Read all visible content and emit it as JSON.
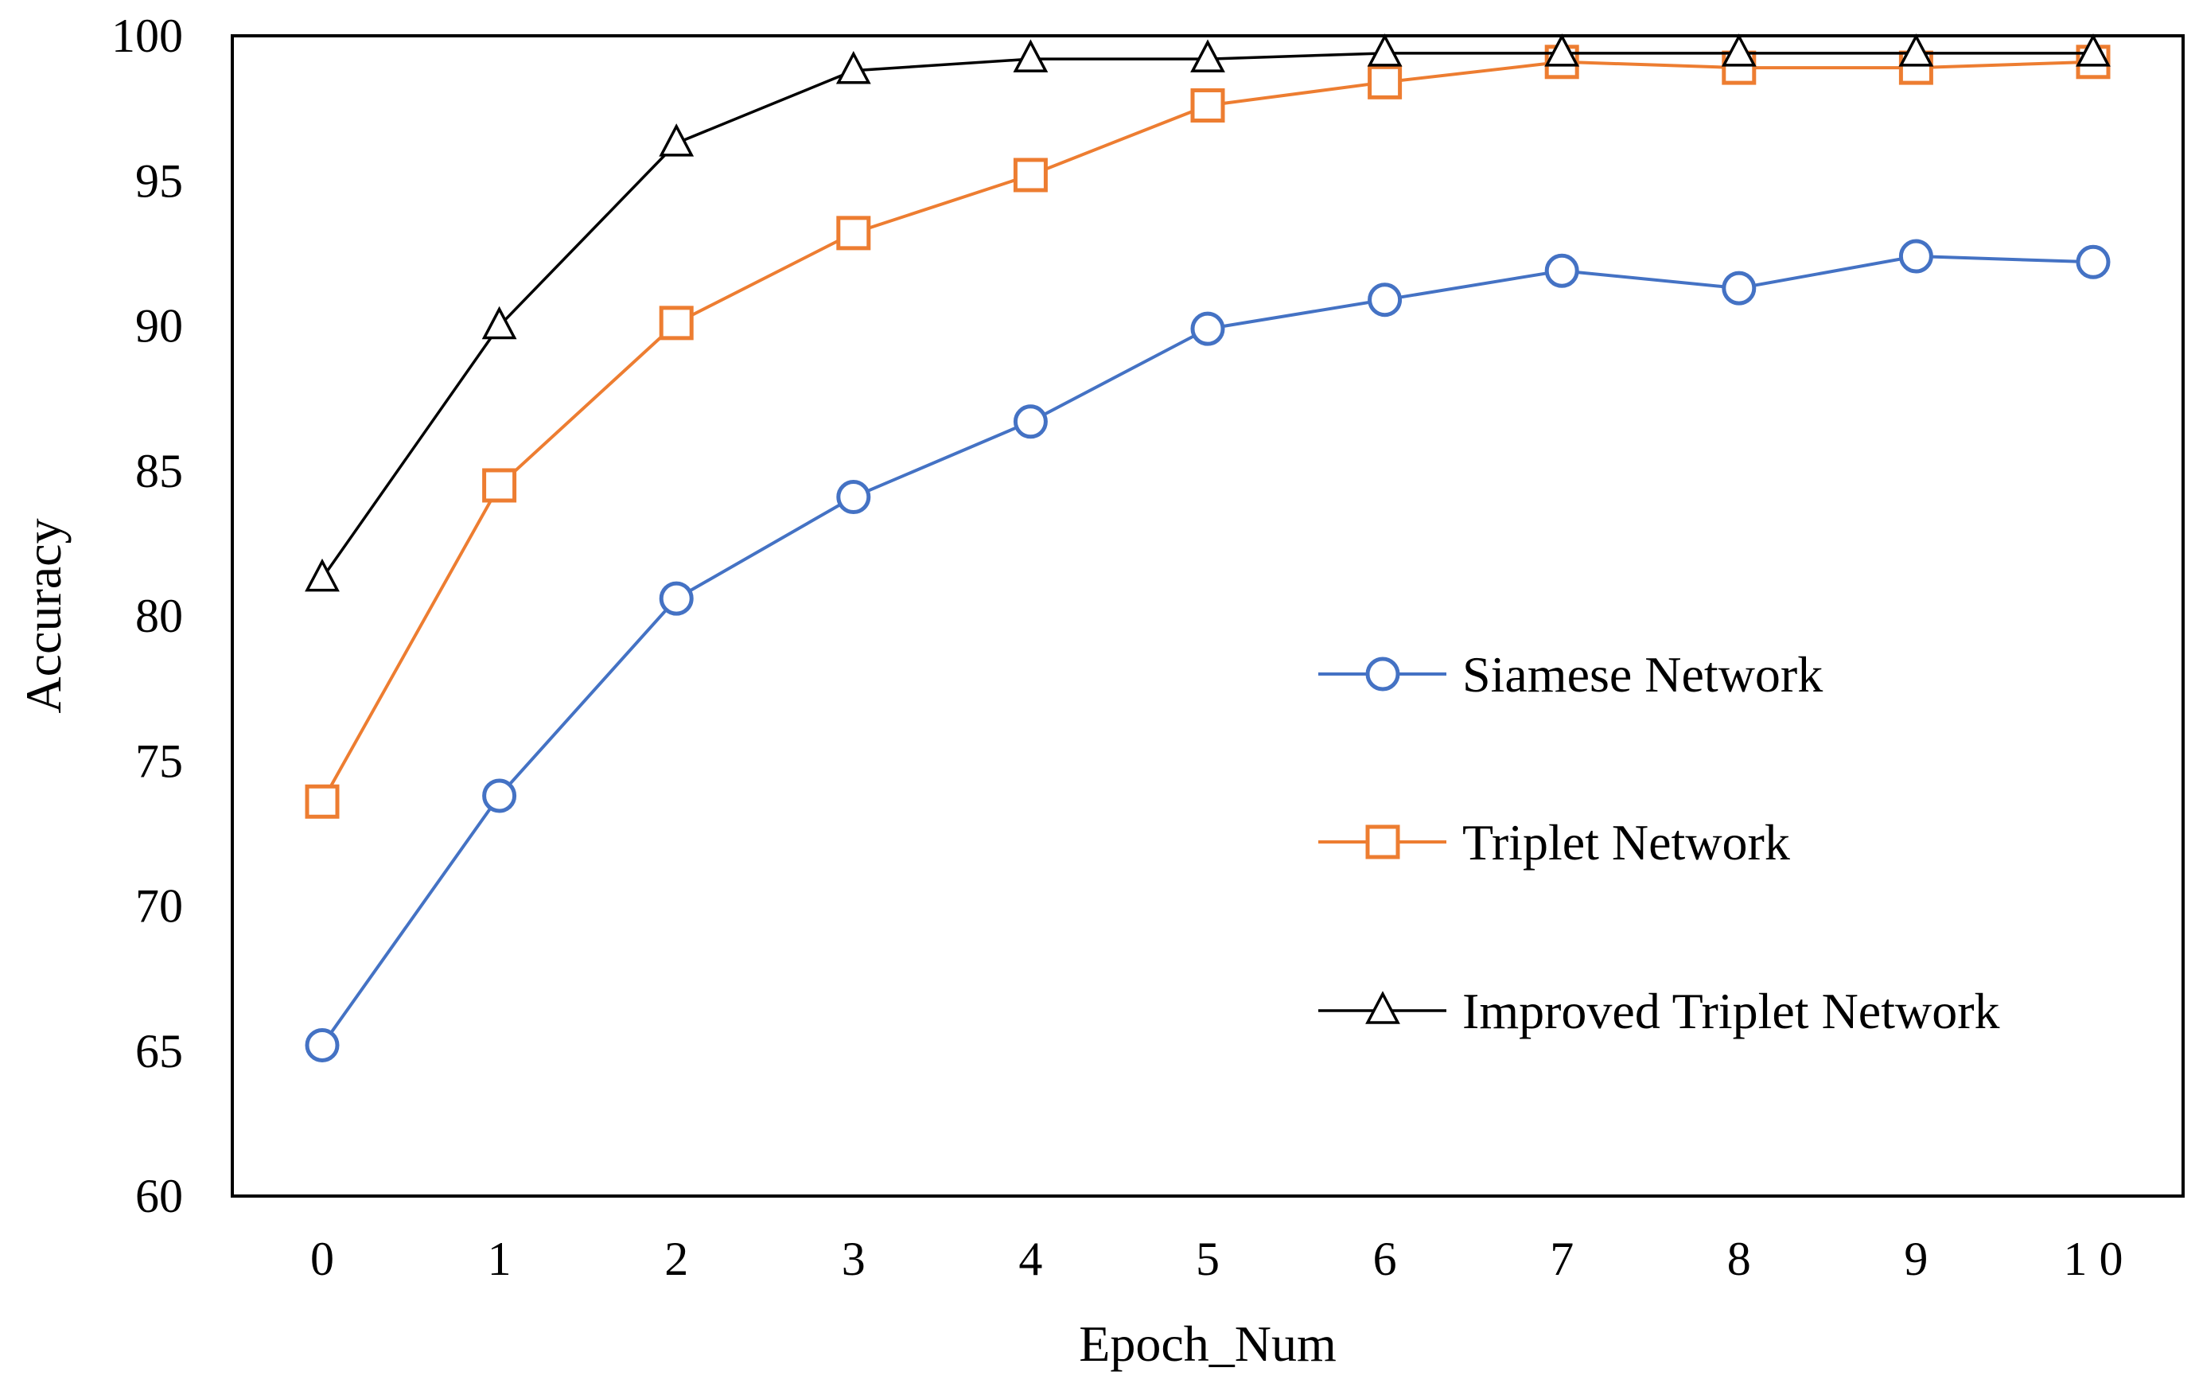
{
  "chart_data": {
    "type": "line",
    "title": "",
    "xlabel": "Epoch_Num",
    "ylabel": "Accuracy",
    "x": [
      0,
      1,
      2,
      3,
      4,
      5,
      6,
      7,
      8,
      9,
      10
    ],
    "x_tick_labels": [
      "0",
      "1",
      "2",
      "3",
      "4",
      "5",
      "6",
      "7",
      "8",
      "9",
      "1 0"
    ],
    "ylim": [
      60,
      100
    ],
    "y_ticks": [
      60,
      65,
      70,
      75,
      80,
      85,
      90,
      95,
      100
    ],
    "grid": false,
    "legend_position": "right",
    "series": [
      {
        "name": "Siamese Network",
        "color": "#4472C4",
        "marker": "circle",
        "values": [
          65.2,
          73.8,
          80.6,
          84.1,
          86.7,
          89.9,
          90.9,
          91.9,
          91.3,
          92.4,
          92.2
        ]
      },
      {
        "name": "Triplet Network",
        "color": "#ED7D31",
        "marker": "square",
        "values": [
          73.6,
          84.5,
          90.1,
          93.2,
          95.2,
          97.6,
          98.4,
          99.1,
          98.9,
          98.9,
          99.1
        ]
      },
      {
        "name": "Improved Triplet Network",
        "color": "#000000",
        "marker": "triangle",
        "values": [
          81.3,
          90.0,
          96.3,
          98.8,
          99.2,
          99.2,
          99.4,
          99.4,
          99.4,
          99.4,
          99.4
        ]
      }
    ]
  }
}
